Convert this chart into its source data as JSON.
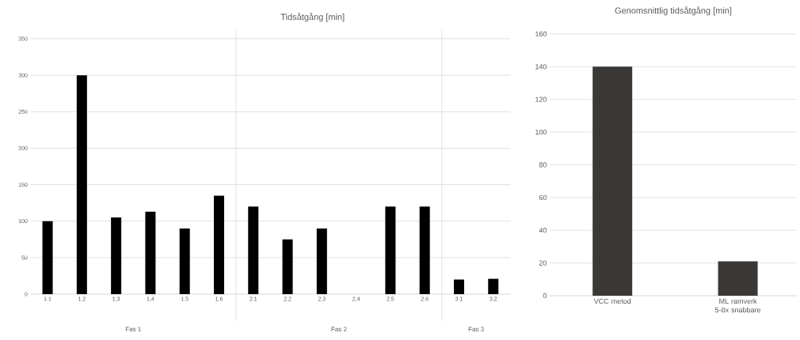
{
  "chart_data": [
    {
      "type": "bar",
      "title": "Tidsåtgång [min]",
      "categories": [
        "1.1",
        "1.2",
        "1.3",
        "1,4",
        "1.5",
        "1.6",
        "2.1",
        "2.2",
        "2.3",
        "2,4",
        "2.5",
        "2.6",
        "3.1",
        "3.2"
      ],
      "values": [
        100,
        300,
        105,
        113,
        90,
        135,
        120,
        75,
        90,
        0,
        120,
        120,
        20,
        21
      ],
      "color": "#000000",
      "ylim": [
        0,
        350
      ],
      "yticks": [
        0,
        50,
        100,
        150,
        200,
        250,
        300,
        350
      ],
      "grid": "y",
      "annotations": [
        "Fas 1",
        "Fas 2",
        "Fas 3"
      ]
    },
    {
      "type": "bar",
      "title": "Genomsnittlig tidsåtgång [min]",
      "categories": [
        "VCC metod",
        "ML ramverk 5-8x snabbare"
      ],
      "values": [
        140,
        21
      ],
      "color": "#3a3938",
      "ylim": [
        0,
        160
      ],
      "yticks": [
        0,
        20,
        40,
        60,
        80,
        100,
        120,
        140,
        160
      ],
      "grid": "y"
    }
  ]
}
